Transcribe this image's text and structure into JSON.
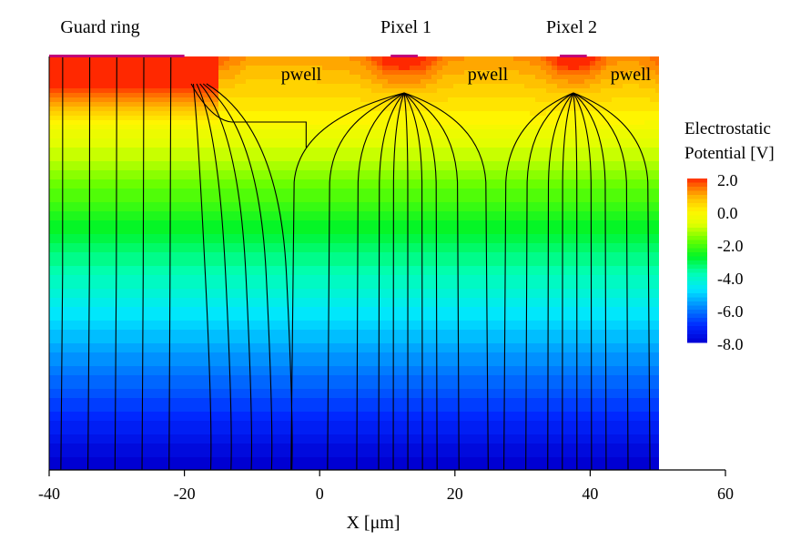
{
  "chart_data": {
    "type": "heatmap",
    "title": "",
    "xlabel": "X [μm]",
    "ylabel": "",
    "xlim": [
      -40,
      60
    ],
    "x_ticks": [
      -40,
      -20,
      0,
      20,
      40,
      60
    ],
    "x_tick_labels": [
      "-40",
      "-20",
      "0",
      "20",
      "40",
      "60"
    ],
    "domain_x": [
      -40,
      50
    ],
    "top_labels": [
      {
        "text": "Guard ring",
        "x": -30
      },
      {
        "text": "Pixel 1",
        "x": 12.5
      },
      {
        "text": "Pixel 2",
        "x": 37.5
      }
    ],
    "regions": [
      {
        "text": "pwell",
        "x": -2.5
      },
      {
        "text": "pwell",
        "x": 24
      },
      {
        "text": "pwell",
        "x": 46
      }
    ],
    "electrodes": [
      {
        "name": "guard-ring",
        "x0": -40,
        "x1": -20
      },
      {
        "name": "pixel-1",
        "x0": 10.5,
        "x1": 14.5
      },
      {
        "name": "pixel-2",
        "x0": 35.5,
        "x1": 39.5
      }
    ],
    "colorbar": {
      "title_line1": "Electrostatic",
      "title_line2": "Potential [V]",
      "min": -8.0,
      "max": 2.0,
      "tick_values": [
        2.0,
        0.0,
        -2.0,
        -4.0,
        -6.0,
        -8.0
      ],
      "tick_labels": [
        "2.0",
        "0.0",
        "-2.0",
        "-4.0",
        "-6.0",
        "-8.0"
      ]
    },
    "potential_range_top": 2.0,
    "potential_range_bottom": -8.0,
    "field_line_x": [
      -38,
      -34,
      -30,
      -26,
      -22,
      -18,
      -15,
      -12,
      -9,
      -6,
      -3,
      2,
      6,
      9,
      11,
      13,
      15,
      17,
      20,
      24,
      28,
      31,
      34,
      36,
      38,
      40,
      42,
      45,
      48
    ],
    "colors": {
      "electrode": "#c0007a",
      "field_line": "#000000"
    }
  }
}
